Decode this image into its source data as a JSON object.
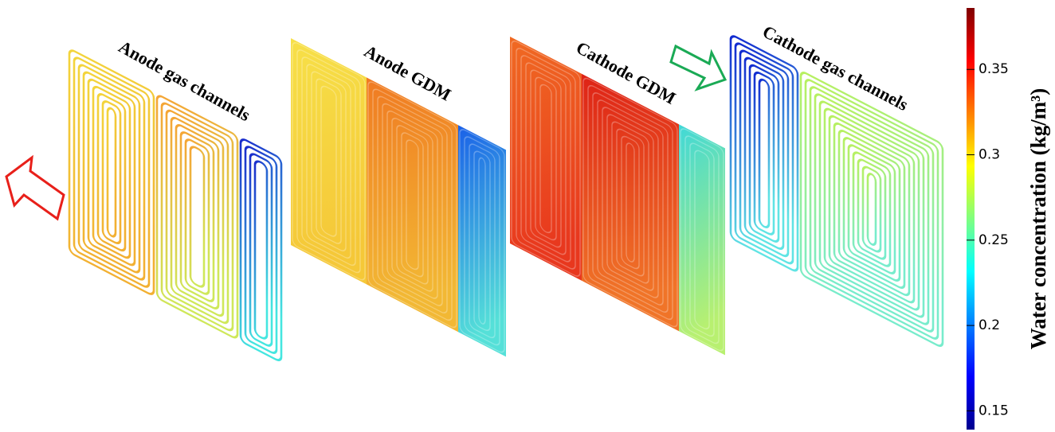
{
  "panels": [
    {
      "title": "Anode gas channels"
    },
    {
      "title": "Anode GDM"
    },
    {
      "title": "Cathode GDM"
    },
    {
      "title": "Cathode gas channels"
    }
  ],
  "colorbar": {
    "label": "Water concentration (kg/m³)",
    "lim": [
      0.139,
      0.386
    ],
    "ticks": [
      0.15,
      0.2,
      0.25,
      0.3,
      0.35
    ]
  }
}
